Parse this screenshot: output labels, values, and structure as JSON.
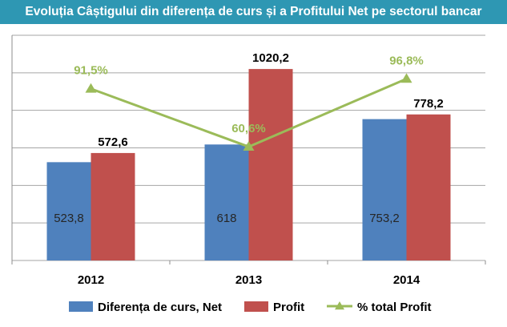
{
  "title": "Evoluția Câștigului din diferența de curs și a Profitului Net pe sectorul bancar",
  "chart_data": {
    "type": "bar",
    "title": "Evoluția Câștigului din diferența de curs și a Profitului Net pe sectorul bancar",
    "categories": [
      "2012",
      "2013",
      "2014"
    ],
    "ylim": [
      0,
      1200
    ],
    "y2lim": [
      0,
      120
    ],
    "grid": true,
    "legend_position": "bottom",
    "series": [
      {
        "name": "Diferența de curs, Net",
        "type": "bar",
        "color": "#4f81bd",
        "values": [
          523.8,
          618,
          753.2
        ],
        "labels": [
          "523,8",
          "618",
          "753,2"
        ]
      },
      {
        "name": "Profit",
        "type": "bar",
        "color": "#c0504d",
        "values": [
          572.6,
          1020.2,
          778.2
        ],
        "labels": [
          "572,6",
          "1020,2",
          "778,2"
        ]
      },
      {
        "name": "% total Profit",
        "type": "line",
        "axis": "secondary",
        "color": "#9bbb59",
        "values": [
          91.5,
          60.6,
          96.8
        ],
        "labels": [
          "91,5%",
          "60,6%",
          "96,8%"
        ]
      }
    ]
  }
}
